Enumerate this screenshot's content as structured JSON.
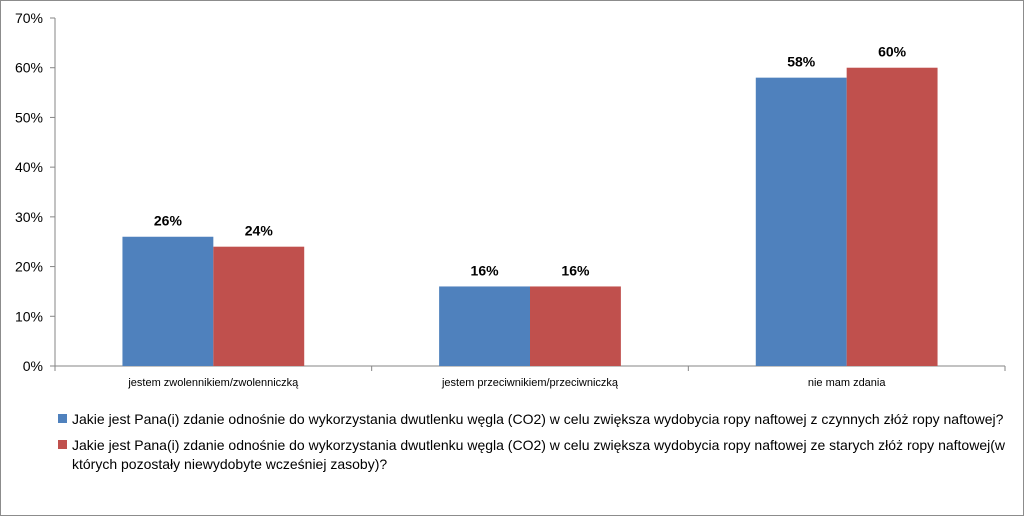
{
  "chart_data": {
    "type": "bar",
    "categories": [
      "jestem zwolennikiem/zwolenniczką",
      "jestem przeciwnikiem/przeciwniczką",
      "nie mam zdania"
    ],
    "series": [
      {
        "name": "Jakie jest Pana(i) zdanie odnośnie do wykorzystania dwutlenku węgla (CO2) w celu zwiększa wydobycia ropy naftowej z czynnych złóż ropy naftowej?",
        "values": [
          26,
          16,
          58
        ],
        "labels": [
          "26%",
          "16%",
          "58%"
        ],
        "color": "#4f81bd"
      },
      {
        "name": "Jakie jest Pana(i) zdanie odnośnie do wykorzystania dwutlenku węgla (CO2) w celu zwiększa wydobycia ropy naftowej ze starych złóż ropy naftowej(w których pozostały niewydobyte wcześniej zasoby)?",
        "values": [
          24,
          16,
          60
        ],
        "labels": [
          "24%",
          "16%",
          "60%"
        ],
        "color": "#c0504d"
      }
    ],
    "ylim": [
      0,
      70
    ],
    "yticks": [
      "0%",
      "10%",
      "20%",
      "30%",
      "40%",
      "50%",
      "60%",
      "70%"
    ],
    "grid": false,
    "legend_position": "bottom"
  }
}
